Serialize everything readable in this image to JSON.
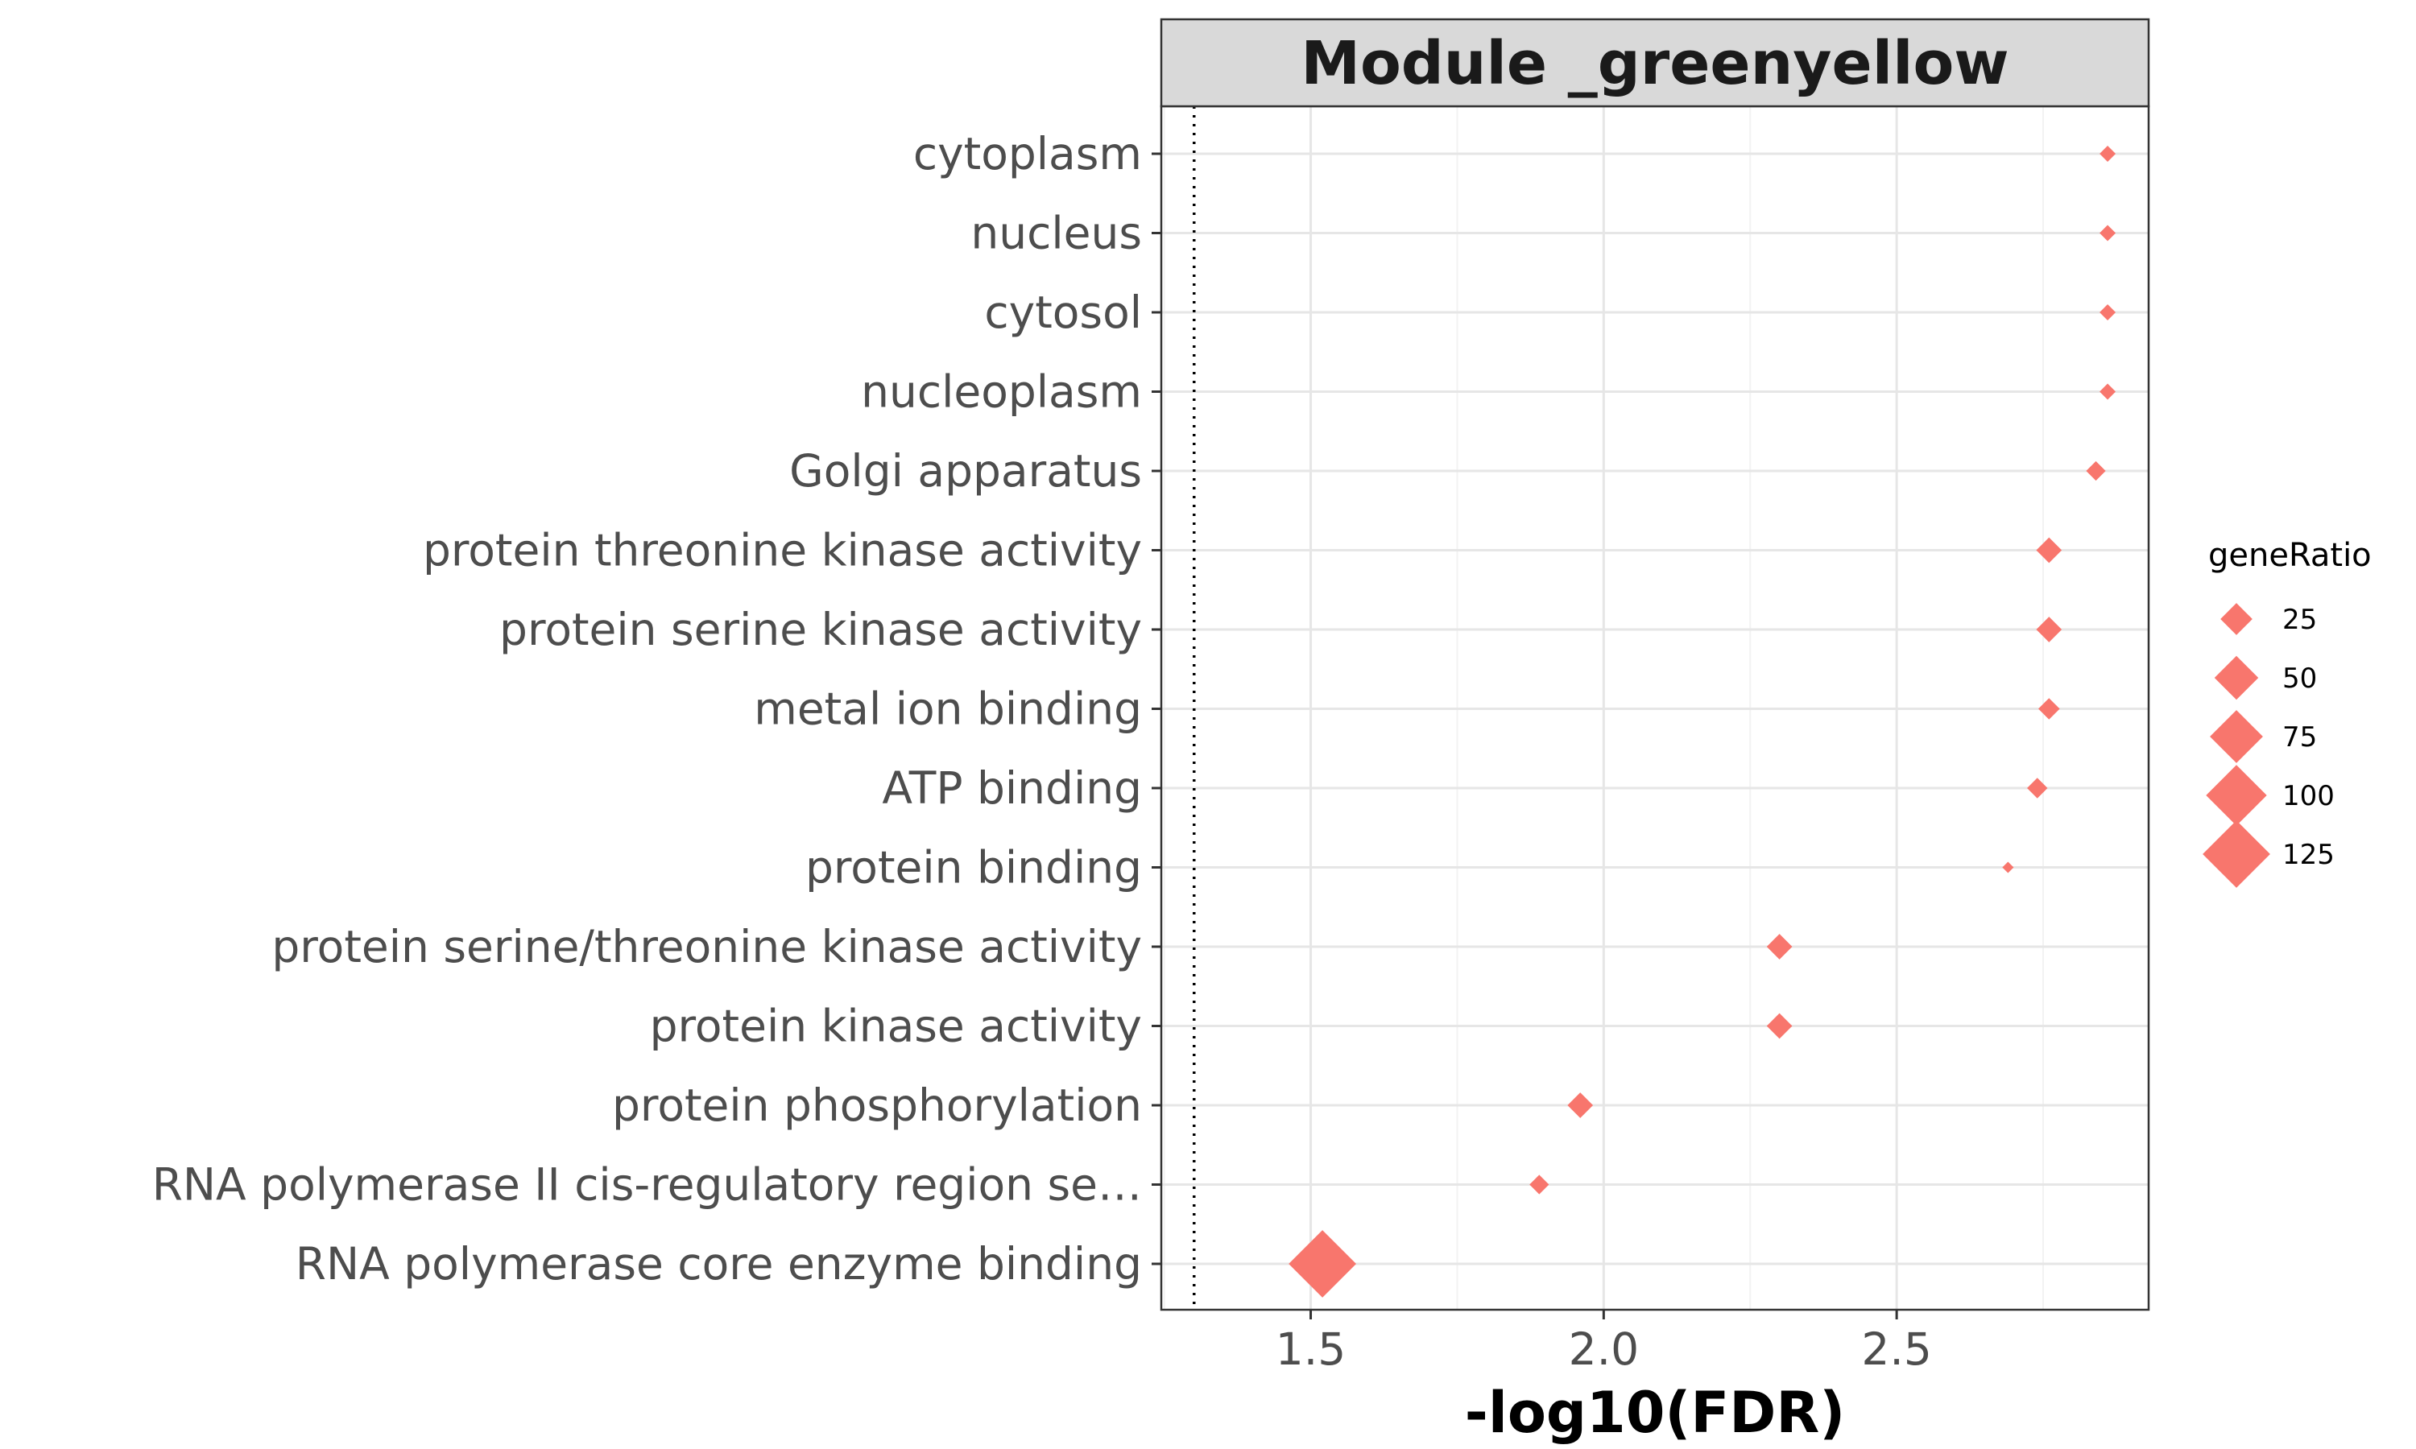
{
  "chart_data": {
    "type": "scatter",
    "title": "Module _greenyellow",
    "xlabel": "-log10(FDR)",
    "ylabel": "",
    "xlim": [
      1.245,
      2.93
    ],
    "xticks": [
      "1.5",
      "2.0",
      "2.5"
    ],
    "xtick_values": [
      1.5,
      2.0,
      2.5
    ],
    "threshold_line": 1.301,
    "grid": true,
    "marker": "diamond",
    "marker_color": "#F8766D",
    "legend": {
      "title": "geneRatio",
      "placement": "right",
      "entries": [
        {
          "label": "25",
          "value": 25
        },
        {
          "label": "50",
          "value": 50
        },
        {
          "label": "75",
          "value": 75
        },
        {
          "label": "100",
          "value": 100
        },
        {
          "label": "125",
          "value": 125
        }
      ]
    },
    "points": [
      {
        "term": "cytoplasm",
        "x": 2.86,
        "size": 5
      },
      {
        "term": "nucleus",
        "x": 2.86,
        "size": 5
      },
      {
        "term": "cytosol",
        "x": 2.86,
        "size": 5
      },
      {
        "term": "nucleoplasm",
        "x": 2.86,
        "size": 5
      },
      {
        "term": "Golgi apparatus",
        "x": 2.84,
        "size": 8
      },
      {
        "term": "protein threonine kinase activity",
        "x": 2.76,
        "size": 15
      },
      {
        "term": "protein serine kinase activity",
        "x": 2.76,
        "size": 15
      },
      {
        "term": "metal ion binding",
        "x": 2.76,
        "size": 10
      },
      {
        "term": "ATP binding",
        "x": 2.74,
        "size": 9
      },
      {
        "term": "protein binding",
        "x": 2.69,
        "size": 2
      },
      {
        "term": "protein serine/threonine kinase activity",
        "x": 2.3,
        "size": 15
      },
      {
        "term": "protein kinase activity",
        "x": 2.3,
        "size": 15
      },
      {
        "term": "protein phosphorylation",
        "x": 1.96,
        "size": 15
      },
      {
        "term": "RNA polymerase II cis-regulatory region se…",
        "x": 1.89,
        "size": 8
      },
      {
        "term": "RNA polymerase core enzyme binding",
        "x": 1.52,
        "size": 125
      }
    ]
  }
}
